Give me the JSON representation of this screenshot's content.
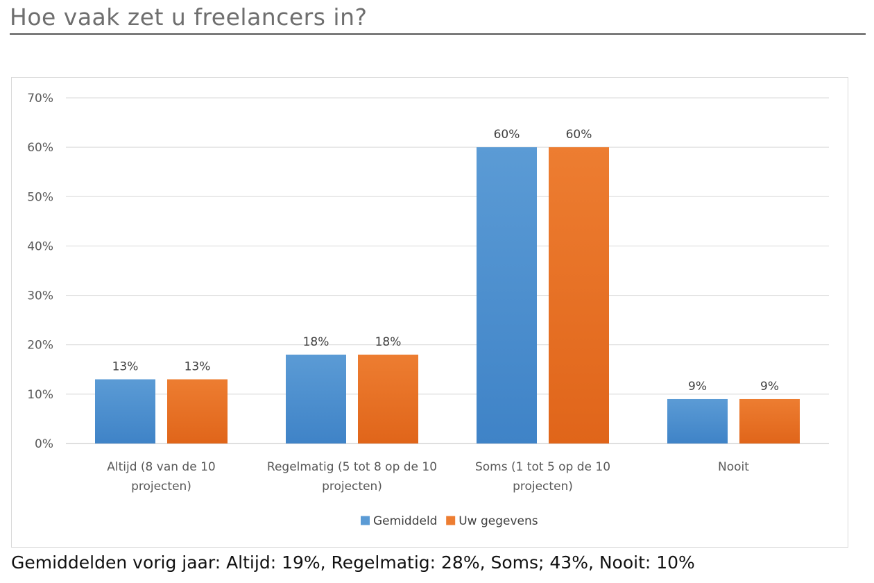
{
  "page": {
    "title": "Hoe vaak zet u freelancers in?",
    "footnote": "Gemiddelden vorig jaar: Altijd: 19%, Regelmatig: 28%, Soms; 43%, Nooit: 10%"
  },
  "chart_data": {
    "type": "bar",
    "title": "",
    "xlabel": "",
    "ylabel": "",
    "categories": [
      [
        "Altijd (8 van de 10",
        "projecten)"
      ],
      [
        "Regelmatig (5 tot 8 op de 10",
        "projecten)"
      ],
      [
        "Soms (1 tot 5 op de 10",
        "projecten)"
      ],
      [
        "Nooit"
      ]
    ],
    "series": [
      {
        "name": "Gemiddeld",
        "values": [
          13,
          18,
          60,
          9
        ],
        "color": "#5b9bd5",
        "color_dark": "#3f83c7"
      },
      {
        "name": "Uw gegevens",
        "values": [
          13,
          18,
          60,
          9
        ],
        "color": "#ed7d31",
        "color_dark": "#e0651a"
      }
    ],
    "value_suffix": "%",
    "ylim": [
      0,
      70
    ],
    "yticks": [
      0,
      10,
      20,
      30,
      40,
      50,
      60,
      70
    ],
    "grid": true,
    "legend": "bottom",
    "data_labels": true
  }
}
